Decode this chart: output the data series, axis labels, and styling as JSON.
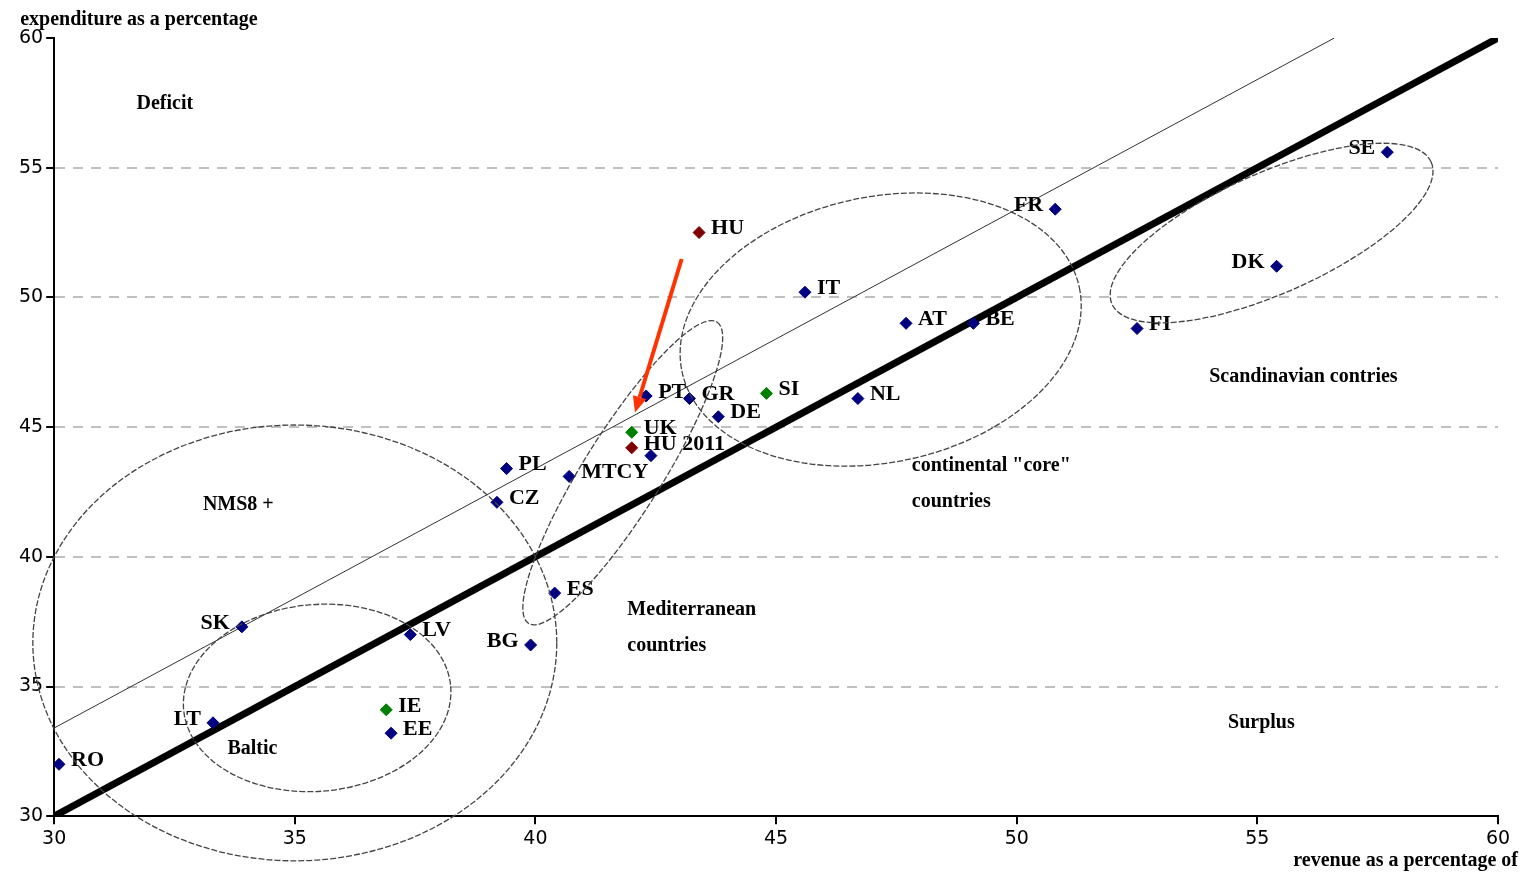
{
  "chart_data": {
    "type": "scatter",
    "xlabel": "revenue as a percentage of",
    "ylabel": "expenditure as a percentage",
    "xlim": [
      30,
      60
    ],
    "ylim": [
      30,
      60
    ],
    "xticks": [
      30,
      35,
      40,
      45,
      50,
      55,
      60
    ],
    "yticks": [
      30,
      35,
      40,
      45,
      50,
      55,
      60
    ],
    "grid": "y",
    "legend": false,
    "marker": "diamond",
    "series": [
      {
        "color": "#000080",
        "x": [
          30.1,
          33.3,
          33.9,
          37.4,
          37.0,
          39.9,
          40.4,
          39.2,
          39.4,
          40.7,
          42.4,
          42.3,
          43.2,
          43.8,
          46.7,
          47.7,
          49.1,
          45.6,
          50.8,
          57.7,
          55.4,
          52.5
        ],
        "values": [
          32.0,
          33.6,
          37.3,
          37.0,
          33.2,
          36.6,
          38.6,
          42.1,
          43.4,
          43.1,
          43.9,
          46.2,
          46.1,
          45.4,
          46.1,
          49.0,
          49.0,
          50.2,
          53.4,
          55.6,
          51.2,
          48.8
        ]
      },
      {
        "color": "#008000",
        "x": [
          36.9,
          42.0,
          44.8
        ],
        "values": [
          34.1,
          44.8,
          46.3
        ]
      },
      {
        "color": "#800000",
        "x": [
          42.0,
          43.4
        ],
        "values": [
          44.2,
          52.5
        ]
      },
      {
        "type": "line",
        "marker": "none",
        "color": "#000000",
        "x": [
          30,
          60
        ],
        "values": [
          30,
          60
        ]
      },
      {
        "type": "line",
        "marker": "none",
        "color": "#333333",
        "x": [
          30,
          56.6
        ],
        "values": [
          33.4,
          60
        ]
      }
    ],
    "annotations": [
      {
        "text": "RO",
        "x": 30.1,
        "y": 32.0
      },
      {
        "text": "LT",
        "x": 33.3,
        "y": 33.6
      },
      {
        "text": "SK",
        "x": 33.9,
        "y": 37.3
      },
      {
        "text": "LV",
        "x": 37.4,
        "y": 37.0
      },
      {
        "text": "EE",
        "x": 37.0,
        "y": 33.2
      },
      {
        "text": "BG",
        "x": 39.9,
        "y": 36.6
      },
      {
        "text": "ES",
        "x": 40.4,
        "y": 38.6
      },
      {
        "text": "CZ",
        "x": 39.2,
        "y": 42.1
      },
      {
        "text": "PL",
        "x": 39.4,
        "y": 43.4
      },
      {
        "text": "MTCY",
        "x": 40.7,
        "y": 43.1
      },
      {
        "text": "PT",
        "x": 42.3,
        "y": 46.2
      },
      {
        "text": "GR",
        "x": 43.2,
        "y": 46.1
      },
      {
        "text": "DE",
        "x": 43.8,
        "y": 45.4
      },
      {
        "text": "NL",
        "x": 46.7,
        "y": 46.1
      },
      {
        "text": "AT",
        "x": 47.7,
        "y": 49.0
      },
      {
        "text": "BE",
        "x": 49.1,
        "y": 49.0
      },
      {
        "text": "IT",
        "x": 45.6,
        "y": 50.2
      },
      {
        "text": "FR",
        "x": 50.8,
        "y": 53.4
      },
      {
        "text": "SE",
        "x": 57.7,
        "y": 55.6
      },
      {
        "text": "DK",
        "x": 55.4,
        "y": 51.2
      },
      {
        "text": "FI",
        "x": 52.5,
        "y": 48.8
      },
      {
        "text": "IE",
        "x": 36.9,
        "y": 34.1
      },
      {
        "text": "UK",
        "x": 42.0,
        "y": 44.8
      },
      {
        "text": "SI",
        "x": 44.8,
        "y": 46.3
      },
      {
        "text": "HU 2011",
        "x": 42.0,
        "y": 44.2
      },
      {
        "text": "HU",
        "x": 43.4,
        "y": 52.5
      },
      "Deficit",
      "NMS8 +",
      "Baltic",
      "Mediterranean countries",
      "continental \"core\" countries",
      "Scandinavian contries",
      "Surplus"
    ]
  }
}
